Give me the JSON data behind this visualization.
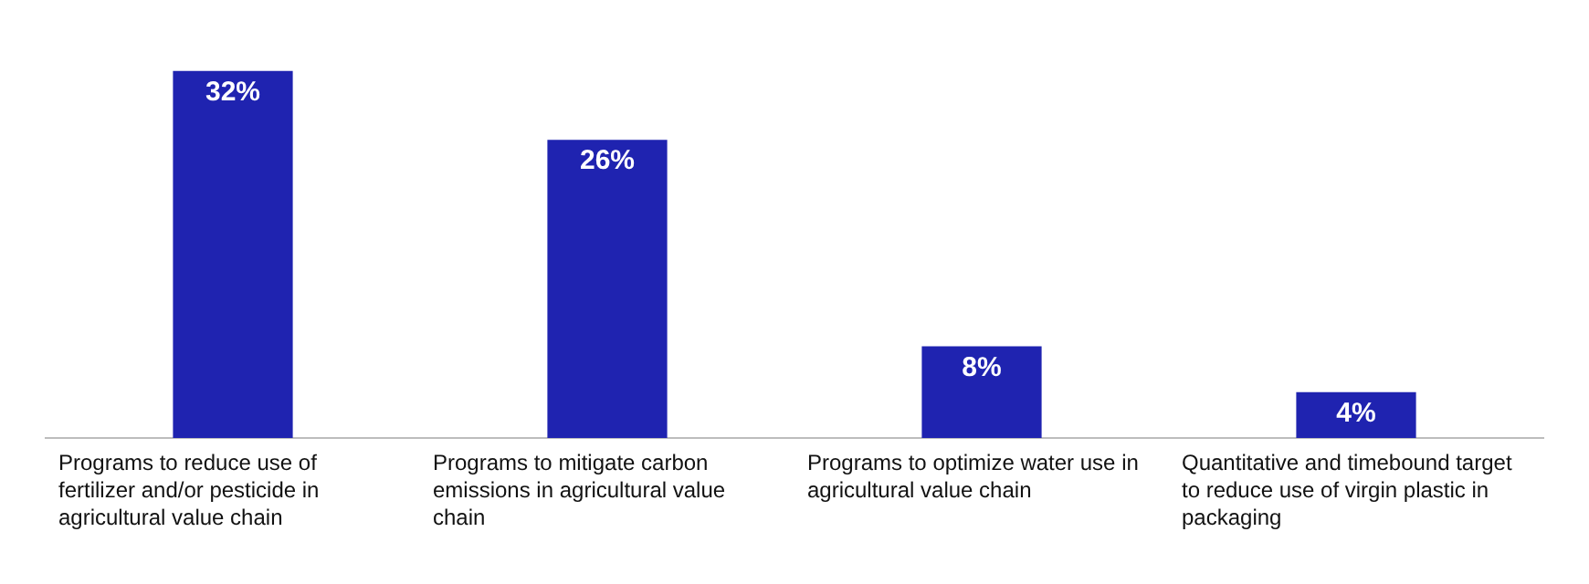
{
  "chart_data": {
    "type": "bar",
    "categories": [
      "Programs to reduce use of fertilizer and/or pesticide in agricultural value chain",
      "Programs to mitigate carbon emissions in agricultural value chain",
      "Programs to optimize water use in agricultural value chain",
      "Quantitative and timebound target to reduce use of virgin plastic in packaging"
    ],
    "values": [
      32,
      26,
      8,
      4
    ],
    "color": "#1f23b0",
    "value_labels": [
      "32%",
      "26%",
      "8%",
      "4%"
    ]
  }
}
